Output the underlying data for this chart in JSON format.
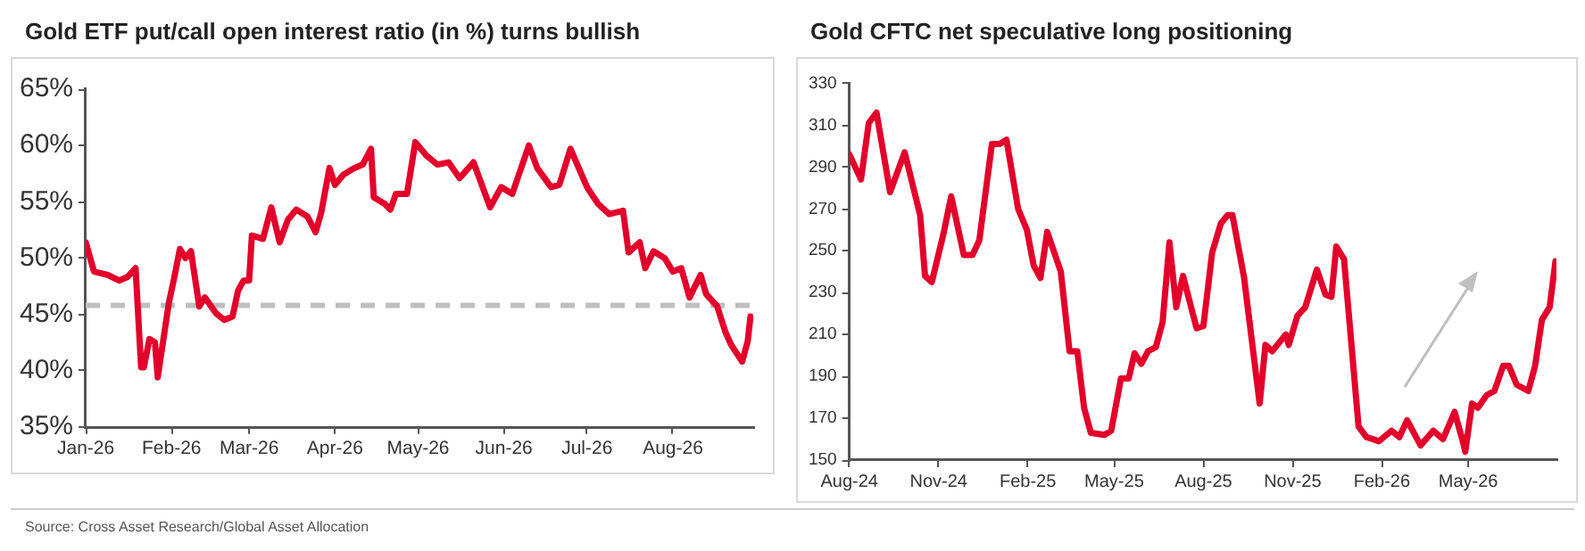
{
  "chart_data": [
    {
      "type": "line",
      "title": "Gold ETF put/call open interest ratio (in %) turns bullish",
      "color": "#e3002b",
      "x": [
        "2026-01-01",
        "2026-01-04",
        "2026-01-09",
        "2026-01-13",
        "2026-01-16",
        "2026-01-19",
        "2026-01-21",
        "2026-01-22",
        "2026-01-24",
        "2026-01-26",
        "2026-01-27",
        "2026-01-31",
        "2026-02-02",
        "2026-02-04",
        "2026-02-06",
        "2026-02-08",
        "2026-02-11",
        "2026-02-13",
        "2026-02-17",
        "2026-02-20",
        "2026-02-23",
        "2026-02-25",
        "2026-02-27",
        "2026-03-01",
        "2026-03-02",
        "2026-03-06",
        "2026-03-09",
        "2026-03-12",
        "2026-03-15",
        "2026-03-18",
        "2026-03-22",
        "2026-03-25",
        "2026-03-27",
        "2026-03-30",
        "2026-04-01",
        "2026-04-04",
        "2026-04-08",
        "2026-04-11",
        "2026-04-14",
        "2026-04-15",
        "2026-04-19",
        "2026-04-21",
        "2026-04-23",
        "2026-04-27",
        "2026-04-30",
        "2026-05-04",
        "2026-05-08",
        "2026-05-12",
        "2026-05-16",
        "2026-05-21",
        "2026-05-24",
        "2026-05-27",
        "2026-05-31",
        "2026-06-04",
        "2026-06-10",
        "2026-06-13",
        "2026-06-18",
        "2026-06-21",
        "2026-06-25",
        "2026-06-28",
        "2026-07-01",
        "2026-07-05",
        "2026-07-09",
        "2026-07-14",
        "2026-07-16",
        "2026-07-20",
        "2026-07-22",
        "2026-07-25",
        "2026-07-29",
        "2026-08-01",
        "2026-08-04",
        "2026-08-07",
        "2026-08-11",
        "2026-08-13",
        "2026-08-17",
        "2026-08-20",
        "2026-08-22",
        "2026-08-26",
        "2026-08-28",
        "2026-08-29"
      ],
      "values": [
        51.4,
        48.8,
        48.5,
        48.0,
        48.3,
        49.1,
        40.3,
        40.3,
        42.8,
        42.5,
        39.4,
        46.0,
        48.3,
        50.8,
        50.0,
        50.6,
        45.7,
        46.5,
        45.1,
        44.5,
        44.8,
        47.1,
        48.0,
        48.0,
        52.0,
        51.7,
        54.5,
        51.4,
        53.4,
        54.3,
        53.7,
        52.3,
        54.0,
        58.0,
        56.5,
        57.4,
        58.0,
        58.3,
        59.7,
        55.4,
        54.8,
        54.3,
        55.7,
        55.7,
        60.3,
        59.1,
        58.3,
        58.5,
        57.1,
        58.5,
        56.5,
        54.5,
        56.3,
        55.7,
        60.0,
        58.0,
        56.3,
        56.5,
        59.7,
        58.0,
        56.3,
        54.8,
        53.9,
        54.2,
        50.5,
        51.4,
        49.1,
        50.6,
        50.0,
        48.8,
        49.1,
        46.5,
        48.5,
        46.8,
        45.7,
        43.4,
        42.3,
        40.8,
        42.6,
        44.8
      ],
      "xlim": [
        "2026-01-01",
        "2026-08-30"
      ],
      "xticks": [
        {
          "value": "2026-01-01",
          "label": "Jan-26"
        },
        {
          "value": "2026-02-01",
          "label": "Feb-26"
        },
        {
          "value": "2026-03-01",
          "label": "Mar-26"
        },
        {
          "value": "2026-04-01",
          "label": "Apr-26"
        },
        {
          "value": "2026-05-01",
          "label": "May-26"
        },
        {
          "value": "2026-06-01",
          "label": "Jun-26"
        },
        {
          "value": "2026-07-01",
          "label": "Jul-26"
        },
        {
          "value": "2026-08-01",
          "label": "Aug-26"
        }
      ],
      "ylim": [
        35,
        65
      ],
      "yticks": [
        {
          "value": 35,
          "label": "35%"
        },
        {
          "value": 40,
          "label": "40%"
        },
        {
          "value": 45,
          "label": "45%"
        },
        {
          "value": 50,
          "label": "50%"
        },
        {
          "value": 55,
          "label": "55%"
        },
        {
          "value": 60,
          "label": "60%"
        },
        {
          "value": 65,
          "label": "65%"
        }
      ],
      "ref_lines": [
        {
          "axis": "y",
          "value": 45.8,
          "color": "#bfbfbf",
          "line_style": "dashed"
        }
      ],
      "annotations": [
        "Source: Cross Asset Research/Global Asset Allocation"
      ]
    },
    {
      "type": "line",
      "title": "Gold CFTC net speculative long positioning",
      "color": "#e3002b",
      "x": [
        "2024-08-01",
        "2024-08-13",
        "2024-08-21",
        "2024-08-29",
        "2024-09-12",
        "2024-09-27",
        "2024-10-13",
        "2024-10-18",
        "2024-10-25",
        "2024-11-06",
        "2024-11-14",
        "2024-11-27",
        "2024-12-06",
        "2024-12-13",
        "2024-12-26",
        "2025-01-03",
        "2025-01-10",
        "2025-01-22",
        "2025-01-31",
        "2025-02-07",
        "2025-02-14",
        "2025-02-21",
        "2025-03-07",
        "2025-03-16",
        "2025-03-24",
        "2025-03-31",
        "2025-04-07",
        "2025-04-21",
        "2025-04-28",
        "2025-05-08",
        "2025-05-16",
        "2025-05-22",
        "2025-05-29",
        "2025-06-05",
        "2025-06-13",
        "2025-06-20",
        "2025-06-27",
        "2025-07-04",
        "2025-07-11",
        "2025-07-25",
        "2025-08-01",
        "2025-08-10",
        "2025-08-19",
        "2025-08-26",
        "2025-08-31",
        "2025-09-12",
        "2025-09-28",
        "2025-10-04",
        "2025-10-11",
        "2025-10-25",
        "2025-10-28",
        "2025-11-06",
        "2025-11-14",
        "2025-11-26",
        "2025-12-05",
        "2025-12-11",
        "2025-12-16",
        "2025-12-24",
        "2026-01-08",
        "2026-01-16",
        "2026-01-29",
        "2026-02-11",
        "2026-02-19",
        "2026-02-27",
        "2026-03-13",
        "2026-03-26",
        "2026-04-05",
        "2026-04-17",
        "2026-04-26",
        "2026-04-28",
        "2026-05-05",
        "2026-05-11",
        "2026-05-20",
        "2026-05-28",
        "2026-06-06",
        "2026-06-12",
        "2026-06-20",
        "2026-07-02",
        "2026-07-09",
        "2026-07-16",
        "2026-07-24",
        "2026-07-30"
      ],
      "values": [
        296,
        284,
        311,
        316,
        278,
        297,
        267,
        238,
        235,
        258,
        276,
        248,
        248,
        255,
        301,
        301,
        303,
        270,
        260,
        243,
        237,
        259,
        240,
        202,
        202,
        175,
        163,
        162,
        164,
        189,
        189,
        201,
        196,
        202,
        204,
        216,
        254,
        223,
        238,
        213,
        214,
        249,
        263,
        267,
        267,
        237,
        177,
        205,
        202,
        210,
        205,
        219,
        223,
        241,
        229,
        228,
        252,
        246,
        166,
        161,
        159,
        164,
        161,
        169,
        157,
        164,
        160,
        173,
        158,
        154,
        177,
        175,
        181,
        183,
        195,
        195,
        186,
        183,
        195,
        217,
        223,
        245
      ],
      "xlim": [
        "2024-08-01",
        "2026-07-31"
      ],
      "xticks": [
        {
          "value": "2024-08-01",
          "label": "Aug-24"
        },
        {
          "value": "2024-11-01",
          "label": "Nov-24"
        },
        {
          "value": "2025-02-01",
          "label": "Feb-25"
        },
        {
          "value": "2025-05-01",
          "label": "May-25"
        },
        {
          "value": "2025-08-01",
          "label": "Aug-25"
        },
        {
          "value": "2025-11-01",
          "label": "Nov-25"
        },
        {
          "value": "2026-02-01",
          "label": "Feb-26"
        },
        {
          "value": "2026-05-01",
          "label": "May-26"
        }
      ],
      "ylim": [
        150,
        330
      ],
      "yticks": [
        150,
        170,
        190,
        210,
        230,
        250,
        270,
        290,
        310,
        330
      ]
    }
  ]
}
